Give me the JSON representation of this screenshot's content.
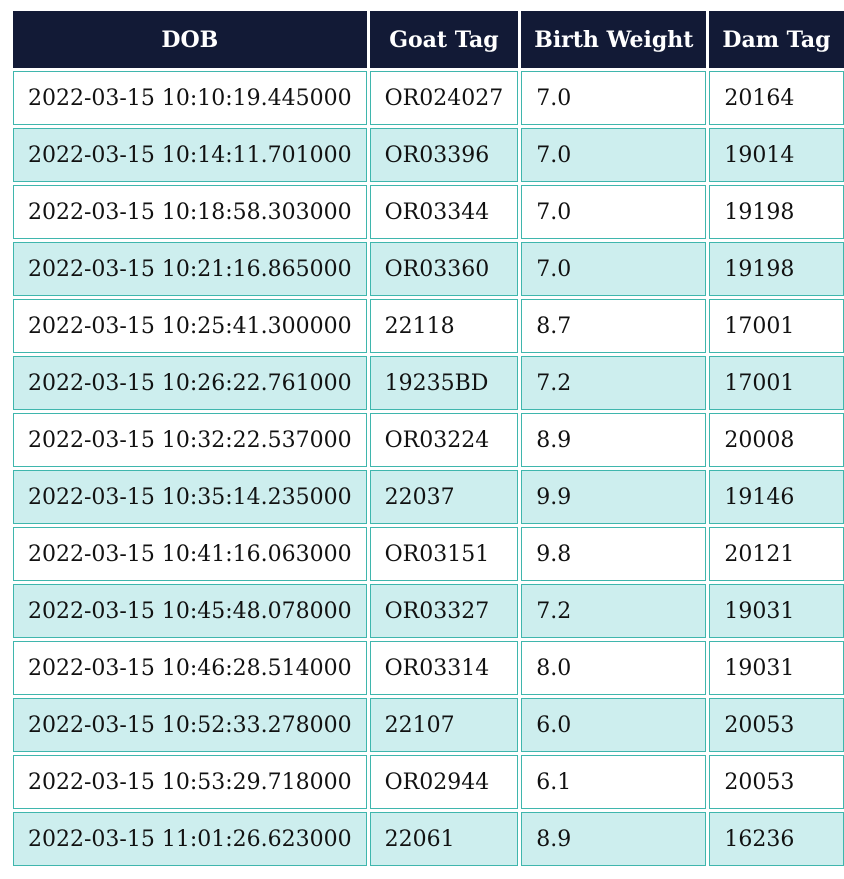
{
  "table": {
    "headers": [
      "DOB",
      "Goat Tag",
      "Birth Weight",
      "Dam Tag"
    ],
    "rows": [
      [
        "2022-03-15 10:10:19.445000",
        "OR024027",
        "7.0",
        "20164"
      ],
      [
        "2022-03-15 10:14:11.701000",
        "OR03396",
        "7.0",
        "19014"
      ],
      [
        "2022-03-15 10:18:58.303000",
        "OR03344",
        "7.0",
        "19198"
      ],
      [
        "2022-03-15 10:21:16.865000",
        "OR03360",
        "7.0",
        "19198"
      ],
      [
        "2022-03-15 10:25:41.300000",
        "22118",
        "8.7",
        "17001"
      ],
      [
        "2022-03-15 10:26:22.761000",
        "19235BD",
        "7.2",
        "17001"
      ],
      [
        "2022-03-15 10:32:22.537000",
        "OR03224",
        "8.9",
        "20008"
      ],
      [
        "2022-03-15 10:35:14.235000",
        "22037",
        "9.9",
        "19146"
      ],
      [
        "2022-03-15 10:41:16.063000",
        "OR03151",
        "9.8",
        "20121"
      ],
      [
        "2022-03-15 10:45:48.078000",
        "OR03327",
        "7.2",
        "19031"
      ],
      [
        "2022-03-15 10:46:28.514000",
        "OR03314",
        "8.0",
        "19031"
      ],
      [
        "2022-03-15 10:52:33.278000",
        "22107",
        "6.0",
        "20053"
      ],
      [
        "2022-03-15 10:53:29.718000",
        "OR02944",
        "6.1",
        "20053"
      ],
      [
        "2022-03-15 11:01:26.623000",
        "22061",
        "8.9",
        "16236"
      ]
    ]
  },
  "colors": {
    "header_bg": "#121a36",
    "row_alt_bg": "#cdeeee",
    "border": "#3fb6ad"
  }
}
